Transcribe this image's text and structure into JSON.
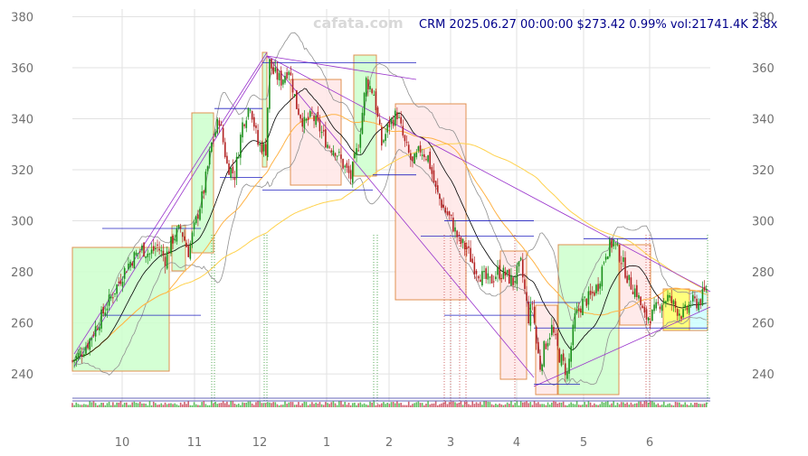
{
  "watermark": "cafata.com",
  "header": "CRM 2025.06.27 00:00:00 $273.42 0.99% vol:21741.4K 2.8x",
  "chart_data": {
    "type": "candlestick",
    "symbol": "CRM",
    "last_date": "2025.06.27 00:00:00",
    "last_price": 273.42,
    "change_pct": 0.99,
    "volume": "21741.4K",
    "volume_ratio": "2.8x",
    "ylim": [
      228,
      383
    ],
    "yticks": [
      240,
      260,
      280,
      300,
      320,
      340,
      360,
      380
    ],
    "xticks": [
      "10",
      "11",
      "12",
      "1",
      "2",
      "3",
      "4",
      "5",
      "6"
    ],
    "grid": true,
    "close_path": [
      [
        0,
        245
      ],
      [
        4,
        248
      ],
      [
        8,
        252
      ],
      [
        12,
        258
      ],
      [
        16,
        264
      ],
      [
        20,
        270
      ],
      [
        24,
        276
      ],
      [
        28,
        282
      ],
      [
        32,
        286
      ],
      [
        36,
        289
      ],
      [
        40,
        287
      ],
      [
        44,
        290
      ],
      [
        48,
        285
      ],
      [
        52,
        293
      ],
      [
        56,
        297
      ],
      [
        60,
        288
      ],
      [
        64,
        300
      ],
      [
        68,
        312
      ],
      [
        72,
        330
      ],
      [
        76,
        340
      ],
      [
        80,
        322
      ],
      [
        84,
        318
      ],
      [
        88,
        338
      ],
      [
        92,
        346
      ],
      [
        96,
        330
      ],
      [
        100,
        328
      ],
      [
        102,
        362
      ],
      [
        104,
        358
      ],
      [
        108,
        355
      ],
      [
        112,
        360
      ],
      [
        116,
        345
      ],
      [
        120,
        338
      ],
      [
        124,
        341
      ],
      [
        128,
        336
      ],
      [
        132,
        330
      ],
      [
        136,
        328
      ],
      [
        140,
        322
      ],
      [
        144,
        317
      ],
      [
        148,
        330
      ],
      [
        152,
        355
      ],
      [
        156,
        350
      ],
      [
        160,
        330
      ],
      [
        164,
        338
      ],
      [
        168,
        342
      ],
      [
        172,
        330
      ],
      [
        176,
        322
      ],
      [
        180,
        328
      ],
      [
        184,
        325
      ],
      [
        188,
        312
      ],
      [
        192,
        305
      ],
      [
        196,
        300
      ],
      [
        200,
        292
      ],
      [
        204,
        289
      ],
      [
        208,
        282
      ],
      [
        212,
        278
      ],
      [
        216,
        276
      ],
      [
        220,
        280
      ],
      [
        224,
        279
      ],
      [
        228,
        276
      ],
      [
        232,
        283
      ],
      [
        236,
        262
      ],
      [
        238,
        268
      ],
      [
        240,
        252
      ],
      [
        242,
        243
      ],
      [
        244,
        250
      ],
      [
        248,
        258
      ],
      [
        252,
        247
      ],
      [
        256,
        240
      ],
      [
        260,
        262
      ],
      [
        264,
        268
      ],
      [
        268,
        270
      ],
      [
        272,
        275
      ],
      [
        276,
        288
      ],
      [
        280,
        292
      ],
      [
        284,
        285
      ],
      [
        288,
        276
      ],
      [
        292,
        272
      ],
      [
        296,
        262
      ],
      [
        300,
        263
      ],
      [
        304,
        268
      ],
      [
        308,
        270
      ],
      [
        312,
        266
      ],
      [
        316,
        263
      ],
      [
        320,
        268
      ],
      [
        324,
        268
      ],
      [
        328,
        273
      ]
    ],
    "volume_note": "volume bars along bottom strip",
    "annotations": [
      "rectangles spanning trend phases",
      "diagonal trendlines",
      "horizontal support/resistance lines",
      "moving averages",
      "bollinger bands"
    ]
  }
}
